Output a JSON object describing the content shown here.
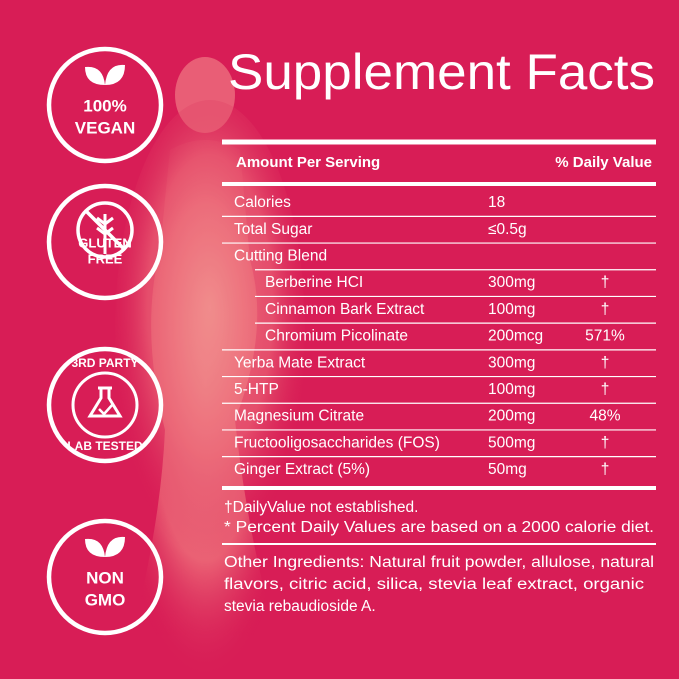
{
  "badges": [
    {
      "lines": [
        "100%",
        "VEGAN"
      ]
    },
    {
      "lines": [
        "GLUTEN",
        "FREE"
      ]
    },
    {
      "lines": [
        "3RD PARTY",
        "LAB TESTED"
      ]
    },
    {
      "lines": [
        "NON",
        "GMO"
      ]
    }
  ],
  "facts": {
    "title": "Supplement Facts",
    "header": {
      "amount": "Amount Per Serving",
      "dv": "% Daily Value"
    },
    "rows": [
      {
        "name": "Calories",
        "amount": "18"
      },
      {
        "name": "Total Sugar",
        "amount": "≤0.5g"
      },
      {
        "name": "Cutting Blend"
      },
      {
        "name": "Berberine HCI",
        "amount": "300mg",
        "dv": "†",
        "indent": true
      },
      {
        "name": "Cinnamon Bark Extract",
        "amount": "100mg",
        "dv": "†",
        "indent": true
      },
      {
        "name": "Chromium Picolinate",
        "amount": "200mcg",
        "dv": "571%",
        "indent": true
      },
      {
        "name": "Yerba Mate Extract",
        "amount": "300mg",
        "dv": "†"
      },
      {
        "name": "5-HTP",
        "amount": "100mg",
        "dv": "†"
      },
      {
        "name": "Magnesium Citrate",
        "amount": "200mg",
        "dv": "48%"
      },
      {
        "name": "Fructooligosaccharides (FOS)",
        "amount": "500mg",
        "dv": "†"
      },
      {
        "name": "Ginger Extract (5%)",
        "amount": "50mg",
        "dv": "†"
      }
    ],
    "footnotes": [
      "†DailyValue not established.",
      "* Percent Daily Values are based on a 2000 calorie diet."
    ],
    "other_ingredients": [
      "Other Ingredients: Natural fruit powder, allulose, natural",
      "flavors, citric acid, silica, stevia leaf extract, organic",
      "stevia rebaudioside A."
    ]
  }
}
